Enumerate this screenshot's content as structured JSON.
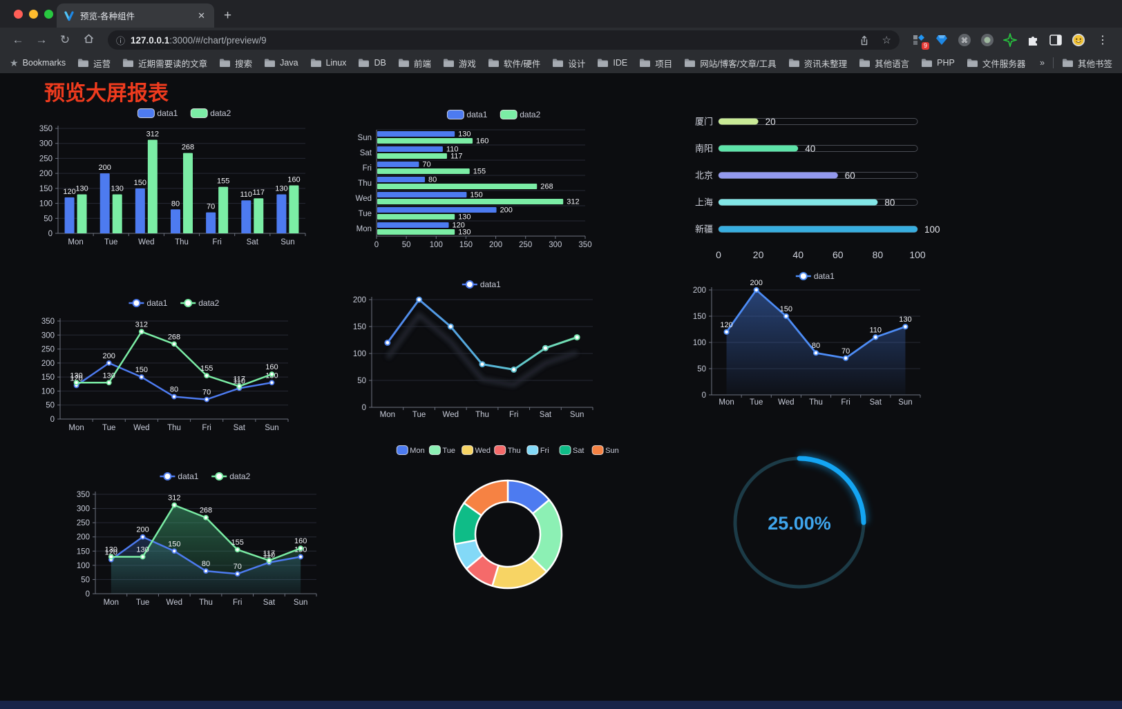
{
  "browser": {
    "tab_title": "预览-各种组件",
    "close_glyph": "✕",
    "new_tab_glyph": "+",
    "back_glyph": "←",
    "forward_glyph": "→",
    "reload_glyph": "↻",
    "info_glyph": "ⓘ",
    "url_host": "127.0.0.1",
    "url_rest": ":3000/#/chart/preview/9",
    "extension_badge": "9",
    "menu_glyph": "⋮",
    "bookmarks_label": "Bookmarks",
    "bookmarks": [
      "运营",
      "近期需要读的文章",
      "搜索",
      "Java",
      "Linux",
      "DB",
      "前端",
      "游戏",
      "软件/硬件",
      "设计",
      "IDE",
      "项目",
      "网站/博客/文章/工具",
      "资讯未整理",
      "其他语言",
      "PHP",
      "文件服务器"
    ],
    "bookmarks_overflow": "»",
    "other_bookmarks": "其他书签"
  },
  "page": {
    "title": "预览大屏报表",
    "title_color": "#ef3b1e"
  },
  "chart_data": [
    {
      "id": "grouped-bar",
      "type": "bar",
      "categories": [
        "Mon",
        "Tue",
        "Wed",
        "Thu",
        "Fri",
        "Sat",
        "Sun"
      ],
      "series": [
        {
          "name": "data1",
          "color": "#4d7bf0",
          "values": [
            120,
            200,
            150,
            80,
            70,
            110,
            130
          ]
        },
        {
          "name": "data2",
          "color": "#7beda5",
          "values": [
            130,
            130,
            312,
            268,
            155,
            117,
            160
          ]
        }
      ],
      "ylim": [
        0,
        350
      ],
      "ytick": 50,
      "legend_position": "top",
      "value_labels": true,
      "grid": true
    },
    {
      "id": "horizontal-bar",
      "type": "bar-horizontal",
      "categories_top_to_bottom": [
        "Sun",
        "Sat",
        "Fri",
        "Thu",
        "Wed",
        "Tue",
        "Mon"
      ],
      "series": [
        {
          "name": "data1",
          "color": "#4d7bf0",
          "values_top_to_bottom": [
            130,
            110,
            70,
            80,
            150,
            200,
            120
          ]
        },
        {
          "name": "data2",
          "color": "#7beda5",
          "values_top_to_bottom": [
            160,
            117,
            155,
            268,
            312,
            130,
            130
          ]
        }
      ],
      "xlim": [
        0,
        350
      ],
      "xticks": [
        0,
        50,
        100,
        150,
        200,
        250,
        300,
        350
      ],
      "legend_position": "top",
      "value_labels": true
    },
    {
      "id": "capsule-bar",
      "type": "capsule",
      "categories": [
        "厦门",
        "南阳",
        "北京",
        "上海",
        "新疆"
      ],
      "values": [
        20,
        40,
        60,
        80,
        100
      ],
      "colors": [
        "#c9ea96",
        "#5ee3a9",
        "#9399ee",
        "#82e6e6",
        "#38aee0"
      ],
      "xlim": [
        0,
        100
      ],
      "xticks": [
        0,
        20,
        40,
        60,
        80,
        100
      ],
      "value_labels": true
    },
    {
      "id": "two-line",
      "type": "line",
      "categories": [
        "Mon",
        "Tue",
        "Wed",
        "Thu",
        "Fri",
        "Sat",
        "Sun"
      ],
      "series": [
        {
          "name": "data1",
          "color": "#4d7bf0",
          "values": [
            120,
            200,
            150,
            80,
            70,
            110,
            130
          ]
        },
        {
          "name": "data2",
          "color": "#7beda5",
          "values": [
            130,
            130,
            312,
            268,
            155,
            117,
            160
          ]
        }
      ],
      "ylim": [
        0,
        350
      ],
      "ytick": 50,
      "legend_position": "top",
      "value_labels": true
    },
    {
      "id": "gradient-line",
      "type": "line-gradient",
      "categories": [
        "Mon",
        "Tue",
        "Wed",
        "Thu",
        "Fri",
        "Sat",
        "Sun"
      ],
      "series": [
        {
          "name": "data1",
          "colors": [
            "#4d7bf0",
            "#7beda5"
          ],
          "values": [
            120,
            200,
            150,
            80,
            70,
            110,
            130
          ]
        }
      ],
      "ylim": [
        0,
        200
      ],
      "ytick": 50,
      "legend_position": "top",
      "value_labels": false,
      "shadow": true
    },
    {
      "id": "area-line",
      "type": "area-line",
      "categories": [
        "Mon",
        "Tue",
        "Wed",
        "Thu",
        "Fri",
        "Sat",
        "Sun"
      ],
      "series": [
        {
          "name": "data1",
          "color": "#4d8cf5",
          "values": [
            120,
            200,
            150,
            80,
            70,
            110,
            130
          ]
        }
      ],
      "ylim": [
        0,
        200
      ],
      "ytick": 50,
      "legend_position": "top",
      "value_labels": true
    },
    {
      "id": "two-area-line",
      "type": "area-line2",
      "categories": [
        "Mon",
        "Tue",
        "Wed",
        "Thu",
        "Fri",
        "Sat",
        "Sun"
      ],
      "series": [
        {
          "name": "data1",
          "color": "#4d7bf0",
          "values": [
            120,
            200,
            150,
            80,
            70,
            110,
            130
          ]
        },
        {
          "name": "data2",
          "color": "#7beda5",
          "values": [
            130,
            130,
            312,
            268,
            155,
            117,
            160
          ]
        }
      ],
      "ylim": [
        0,
        350
      ],
      "ytick": 50,
      "legend_position": "top",
      "value_labels": true
    },
    {
      "id": "donut-pie",
      "type": "pie",
      "labels": [
        "Mon",
        "Tue",
        "Wed",
        "Thu",
        "Fri",
        "Sat",
        "Sun"
      ],
      "values": [
        120,
        200,
        150,
        80,
        70,
        110,
        130
      ],
      "colors": [
        "#4d7bf0",
        "#8cf0b4",
        "#f7d464",
        "#f56a6a",
        "#83d9f7",
        "#0fbc87",
        "#f68243"
      ],
      "legend_position": "top",
      "donut": true
    },
    {
      "id": "gauge-progress",
      "type": "gauge",
      "text": "25.00%",
      "percent": 25,
      "arc_color": "#14a5f3",
      "track_color": "#1c3b47",
      "text_color": "#3fa5ec"
    }
  ]
}
